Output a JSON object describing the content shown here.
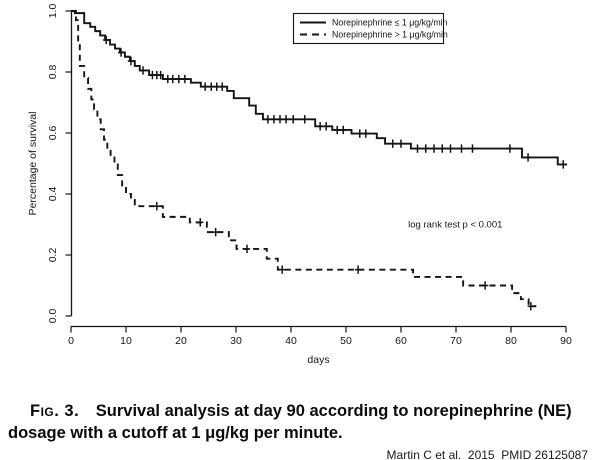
{
  "chart_data": {
    "type": "line",
    "subtype": "kaplan-meier-step",
    "title": "",
    "xlabel": "days",
    "ylabel": "Percentage of survival",
    "xlim": [
      0,
      90
    ],
    "ylim": [
      0.0,
      1.0
    ],
    "x_ticks": [
      0,
      10,
      20,
      30,
      40,
      50,
      60,
      70,
      80,
      90
    ],
    "y_ticks": [
      0.0,
      0.2,
      0.4,
      0.6,
      0.8,
      1.0
    ],
    "grid": false,
    "legend_position": "top-center-inside",
    "line_color": "#141414",
    "annotation": {
      "text": "log rank test p < 0.001",
      "x": 61.3,
      "y": 0.3
    },
    "series": [
      {
        "name": "Norepinephrine ≤ 1 μg/kg/min",
        "line_style": "solid",
        "color": "#141414",
        "points": [
          [
            0,
            1.0
          ],
          [
            0.7,
            0.993
          ],
          [
            2.4,
            0.96
          ],
          [
            3.5,
            0.948
          ],
          [
            4.4,
            0.934
          ],
          [
            5.3,
            0.92
          ],
          [
            6.2,
            0.905
          ],
          [
            7.1,
            0.89
          ],
          [
            8.0,
            0.877
          ],
          [
            8.9,
            0.864
          ],
          [
            9.8,
            0.85
          ],
          [
            10.7,
            0.836
          ],
          [
            11.6,
            0.82
          ],
          [
            12.5,
            0.805
          ],
          [
            14.2,
            0.79
          ],
          [
            16.7,
            0.777
          ],
          [
            21.8,
            0.765
          ],
          [
            23.6,
            0.752
          ],
          [
            28.4,
            0.738
          ],
          [
            29.6,
            0.714
          ],
          [
            32.4,
            0.69
          ],
          [
            33.6,
            0.663
          ],
          [
            34.9,
            0.645
          ],
          [
            44.4,
            0.622
          ],
          [
            47.5,
            0.61
          ],
          [
            51.0,
            0.598
          ],
          [
            55.6,
            0.583
          ],
          [
            57.1,
            0.565
          ],
          [
            61.8,
            0.549
          ],
          [
            82.0,
            0.52
          ],
          [
            88.5,
            0.497
          ],
          [
            90.2,
            0.497
          ]
        ],
        "censor_marks": [
          [
            6.4,
            0.905
          ],
          [
            9.1,
            0.864
          ],
          [
            10.9,
            0.836
          ],
          [
            13.1,
            0.805
          ],
          [
            14.8,
            0.79
          ],
          [
            15.6,
            0.79
          ],
          [
            16.3,
            0.79
          ],
          [
            17.6,
            0.777
          ],
          [
            18.5,
            0.777
          ],
          [
            19.6,
            0.777
          ],
          [
            20.7,
            0.777
          ],
          [
            24.4,
            0.752
          ],
          [
            25.5,
            0.752
          ],
          [
            26.5,
            0.752
          ],
          [
            27.5,
            0.752
          ],
          [
            35.8,
            0.645
          ],
          [
            36.9,
            0.645
          ],
          [
            38.0,
            0.645
          ],
          [
            39.1,
            0.645
          ],
          [
            40.4,
            0.645
          ],
          [
            42.5,
            0.645
          ],
          [
            45.3,
            0.622
          ],
          [
            46.4,
            0.622
          ],
          [
            48.4,
            0.61
          ],
          [
            49.5,
            0.61
          ],
          [
            52.5,
            0.598
          ],
          [
            53.6,
            0.598
          ],
          [
            58.5,
            0.565
          ],
          [
            60.0,
            0.565
          ],
          [
            63.0,
            0.549
          ],
          [
            64.5,
            0.549
          ],
          [
            66.0,
            0.549
          ],
          [
            67.5,
            0.549
          ],
          [
            69.0,
            0.549
          ],
          [
            71.0,
            0.549
          ],
          [
            73.0,
            0.549
          ],
          [
            79.8,
            0.549
          ],
          [
            83.1,
            0.52
          ],
          [
            89.5,
            0.497
          ]
        ]
      },
      {
        "name": "Norepinephrine > 1 μg/kg/min",
        "line_style": "dashed",
        "color": "#141414",
        "points": [
          [
            0,
            1.0
          ],
          [
            0.9,
            0.97
          ],
          [
            1.3,
            0.895
          ],
          [
            1.6,
            0.82
          ],
          [
            2.4,
            0.78
          ],
          [
            3.1,
            0.745
          ],
          [
            3.7,
            0.71
          ],
          [
            4.2,
            0.678
          ],
          [
            4.8,
            0.645
          ],
          [
            5.4,
            0.612
          ],
          [
            6.0,
            0.578
          ],
          [
            6.6,
            0.545
          ],
          [
            7.2,
            0.52
          ],
          [
            7.9,
            0.497
          ],
          [
            8.5,
            0.462
          ],
          [
            9.3,
            0.42
          ],
          [
            10.0,
            0.4
          ],
          [
            10.9,
            0.38
          ],
          [
            11.6,
            0.36
          ],
          [
            16.7,
            0.325
          ],
          [
            21.6,
            0.307
          ],
          [
            24.7,
            0.275
          ],
          [
            28.7,
            0.248
          ],
          [
            30.1,
            0.22
          ],
          [
            35.6,
            0.188
          ],
          [
            37.6,
            0.152
          ],
          [
            62.2,
            0.128
          ],
          [
            71.3,
            0.1
          ],
          [
            80.2,
            0.075
          ],
          [
            81.8,
            0.055
          ],
          [
            83.2,
            0.032
          ],
          [
            84.6,
            0.032
          ]
        ],
        "censor_marks": [
          [
            15.6,
            0.36
          ],
          [
            23.5,
            0.307
          ],
          [
            26.3,
            0.275
          ],
          [
            32.0,
            0.22
          ],
          [
            38.4,
            0.152
          ],
          [
            52.2,
            0.152
          ],
          [
            75.3,
            0.1
          ],
          [
            83.6,
            0.032
          ]
        ]
      }
    ]
  },
  "caption": {
    "fig_label": "Fig. 3.",
    "line1": "Survival analysis at day 90 according to norepinephrine (NE)",
    "line2": "dosage with a cutoff at 1 μg/kg per minute."
  },
  "attribution": "Martin C et al.  2015  PMID 26125087"
}
